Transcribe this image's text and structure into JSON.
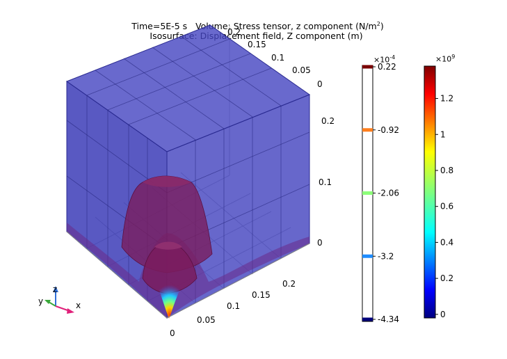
{
  "chart_data": {
    "type": "3d-volume-isosurface",
    "title": {
      "time": "Time=5E-5 s",
      "volume_prefix": "Volume: Stress tensor, z component (N/m",
      "volume_exp": "2",
      "volume_suffix": ")",
      "isosurface": "Isosurface: Displacement field, Z component (m)"
    },
    "axes": {
      "x_ticks": [
        "0",
        "0.05",
        "0.1",
        "0.15",
        "0.2"
      ],
      "y_ticks": [
        "0",
        "0.05",
        "0.1",
        "0.15",
        "0.2"
      ],
      "z_ticks": [
        "0",
        "0.1",
        "0.2"
      ],
      "triad": {
        "x": "x",
        "y": "y",
        "z": "z"
      }
    },
    "colorbars": [
      {
        "name": "isosurface-levels",
        "multiplier": "×10",
        "multiplier_exp": "-4",
        "levels": [
          "0.22",
          "-0.92",
          "-2.06",
          "-3.2",
          "-4.34"
        ],
        "level_colors": [
          "#7a0000",
          "#ff7f1e",
          "#8dff7a",
          "#1e8cff",
          "#00007a"
        ]
      },
      {
        "name": "stress-volume",
        "multiplier": "×10",
        "multiplier_exp": "9",
        "ticks": [
          "0",
          "0.2",
          "0.4",
          "0.6",
          "0.8",
          "1",
          "1.2"
        ],
        "range": [
          -0.02,
          1.38
        ],
        "colormap": "jet"
      }
    ],
    "colors": {
      "volume": "#3434b4",
      "isosurface": "#7a1a5a",
      "background": "#ffffff"
    }
  }
}
